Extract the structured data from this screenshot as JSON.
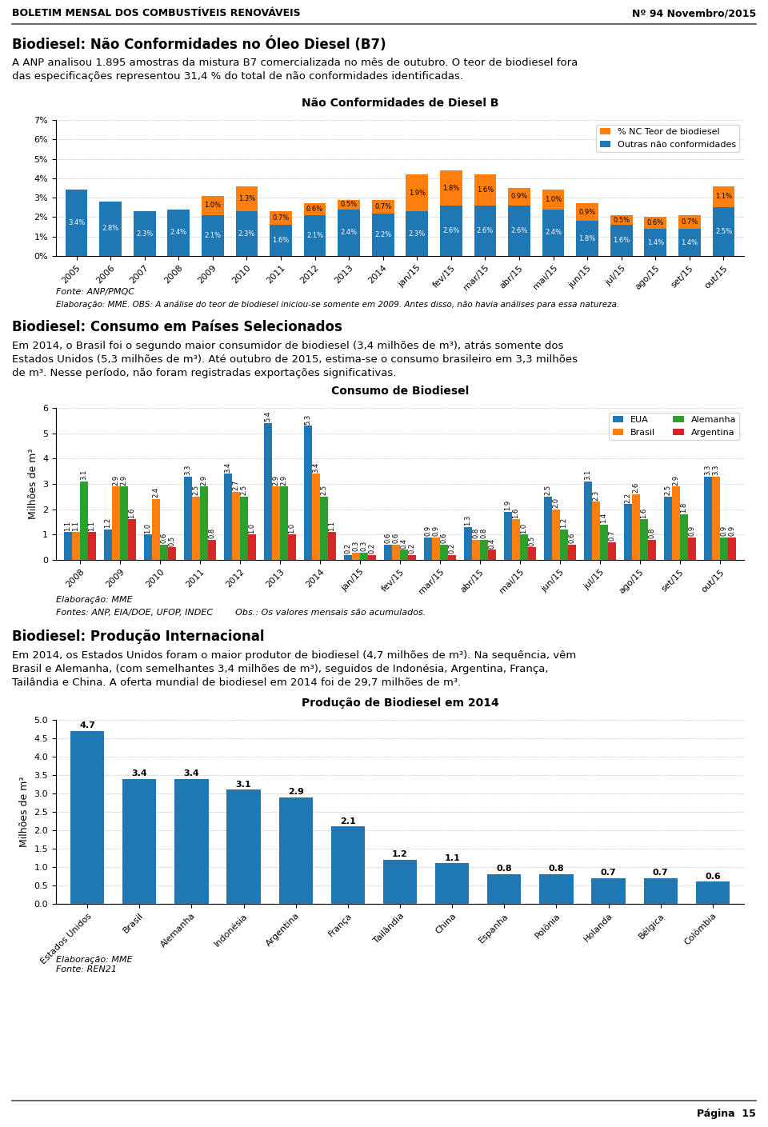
{
  "chart_data": [
    {
      "type": "bar",
      "stacked": true,
      "title": "Não Conformidades de Diesel B",
      "categories": [
        "2005",
        "2006",
        "2007",
        "2008",
        "2009",
        "2010",
        "2011",
        "2012",
        "2013",
        "2014",
        "jan/15",
        "fev/15",
        "mar/15",
        "abr/15",
        "mai/15",
        "jun/15",
        "jul/15",
        "ago/15",
        "set/15",
        "out/15"
      ],
      "series": [
        {
          "name": "Outras não conformidades",
          "values": [
            3.4,
            2.8,
            2.3,
            2.4,
            2.1,
            2.3,
            1.6,
            2.1,
            2.4,
            2.2,
            2.3,
            2.6,
            2.6,
            2.6,
            2.4,
            1.8,
            1.6,
            1.4,
            1.4,
            2.5
          ],
          "value_labels": [
            "3.4%",
            "2.8%",
            "2.3%",
            "2.4%",
            "2.1%",
            "2.3%",
            "1.6%",
            "2.1%",
            "2.4%",
            "2.2%",
            "2.3%",
            "2.6%",
            "2.6%",
            "2.6%",
            "2.4%",
            "1.8%",
            "1.6%",
            "1.4%",
            "1.4%",
            "2.5%"
          ]
        },
        {
          "name": "% NC Teor de biodiesel",
          "values": [
            0.0,
            0.0,
            0.0,
            0.0,
            1.0,
            1.3,
            0.7,
            0.6,
            0.5,
            0.7,
            1.9,
            1.8,
            1.6,
            0.9,
            1.0,
            0.9,
            0.5,
            0.6,
            0.7,
            1.1
          ],
          "value_labels": [
            null,
            null,
            null,
            null,
            "1.0%",
            "1.3%",
            "0.7%",
            "0.6%",
            "0.5%",
            "0.7%",
            "1.9%",
            "1.8%",
            "1.6%",
            "0.9%",
            "1.0%",
            "0.9%",
            "0.5%",
            "0.6%",
            "0.7%",
            "1.1%"
          ]
        }
      ],
      "ylim": [
        0,
        7
      ],
      "yticks": [
        {
          "value": 0,
          "label": "0%"
        },
        {
          "value": 1,
          "label": "1%"
        },
        {
          "value": 2,
          "label": "2%"
        },
        {
          "value": 3,
          "label": "3%"
        },
        {
          "value": 4,
          "label": "4%"
        },
        {
          "value": 5,
          "label": "5%"
        },
        {
          "value": 6,
          "label": "6%"
        },
        {
          "value": 7,
          "label": "7%"
        }
      ],
      "grid": true,
      "legend": "upper right",
      "data_labels": true,
      "annotations": [
        "BOLETIM MENSAL DOS COMBUSTÍVEIS RENOVÁVEIS",
        "Nº 94 Novembro/2015",
        "Biodiesel: Não Conformidades no Óleo Diesel (B7)",
        "A ANP analisou 1.895 amostras da mistura B7 comercializada no mês de outubro. O teor de biodiesel fora",
        "das especificações representou 31,4 % do total de não conformidades identificadas.",
        "Fonte: ANP/PMQC",
        "Elaboração: MME. OBS: A análise do teor de biodiesel iniciou-se somente em 2009. Antes disso, não havia análises para essa natureza."
      ]
    },
    {
      "type": "bar",
      "title": "Consumo de Biodiesel",
      "categories": [
        "2008",
        "2009",
        "2010",
        "2011",
        "2012",
        "2013",
        "2014",
        "jan/15",
        "fev/15",
        "mar/15",
        "abr/15",
        "mai/15",
        "jun/15",
        "jul/15",
        "ago/15",
        "set/15",
        "out/15"
      ],
      "series": [
        {
          "name": "EUA",
          "values": [
            1.1,
            1.2,
            1.0,
            3.3,
            3.4,
            5.4,
            5.3,
            0.2,
            0.6,
            0.9,
            1.3,
            1.9,
            2.5,
            3.1,
            2.2,
            2.5,
            3.3
          ]
        },
        {
          "name": "Brasil",
          "values": [
            1.1,
            2.9,
            2.4,
            2.5,
            2.7,
            2.9,
            3.4,
            0.3,
            0.6,
            0.9,
            0.8,
            1.6,
            2.0,
            2.3,
            2.6,
            2.9,
            3.3
          ]
        },
        {
          "name": "Alemanha",
          "values": [
            3.1,
            2.9,
            0.6,
            2.9,
            2.5,
            2.9,
            2.5,
            0.3,
            0.4,
            0.6,
            0.8,
            1.0,
            1.2,
            1.4,
            1.6,
            1.8,
            0.9
          ]
        },
        {
          "name": "Argentina",
          "values": [
            1.1,
            1.6,
            0.5,
            0.8,
            1.0,
            1.0,
            1.1,
            0.2,
            0.2,
            0.2,
            0.4,
            0.5,
            0.6,
            0.7,
            0.8,
            0.9,
            0.9
          ]
        }
      ],
      "y_label": "Milhões de m³",
      "ylim": [
        0,
        6
      ],
      "yticks": [
        0,
        1,
        2,
        3,
        4,
        5,
        6
      ],
      "grid": true,
      "legend": "upper right",
      "data_labels": true,
      "annotations": [
        "Biodiesel: Consumo em Países Selecionados",
        "Em 2014, o Brasil foi o segundo maior consumidor de biodiesel (3,4 milhões de m³), atrás somente dos",
        "Estados Unidos (5,3 milhões de m³). Até outubro de 2015, estima-se o consumo brasileiro em 3,3 milhões",
        "de m³. Nesse período, não foram registradas exportações significativas.",
        "Elaboração: MME",
        "Fontes: ANP, EIA/DOE, UFOP, INDEC        Obs.: Os valores mensais são acumulados."
      ]
    },
    {
      "type": "bar",
      "title": "Produção de Biodiesel em 2014",
      "categories": [
        "Estados Unidos",
        "Brasil",
        "Alemanha",
        "Indonésia",
        "Argentina",
        "França",
        "Tailândia",
        "China",
        "Espanha",
        "Polônia",
        "Holanda",
        "Bélgica",
        "Colômbia"
      ],
      "values": [
        4.7,
        3.4,
        3.4,
        3.1,
        2.9,
        2.1,
        1.2,
        1.1,
        0.8,
        0.8,
        0.7,
        0.7,
        0.6
      ],
      "y_label": "Milhões de m³",
      "ylim": [
        0,
        5
      ],
      "yticks": [
        {
          "value": 0,
          "label": "0.0"
        },
        {
          "value": 0.5,
          "label": "0.5"
        },
        {
          "value": 1,
          "label": "1.0"
        },
        {
          "value": 1.5,
          "label": "1.5"
        },
        {
          "value": 2,
          "label": "2.0"
        },
        {
          "value": 2.5,
          "label": "2.5"
        },
        {
          "value": 3,
          "label": "3.0"
        },
        {
          "value": 3.5,
          "label": "3.5"
        },
        {
          "value": 4,
          "label": "4.0"
        },
        {
          "value": 4.5,
          "label": "4.5"
        },
        {
          "value": 5,
          "label": "5.0"
        }
      ],
      "grid": true,
      "data_labels": true,
      "annotations": [
        "Biodiesel: Produção Internacional",
        "Em 2014, os Estados Unidos foram o maior produtor de biodiesel (4,7 milhões de m³). Na sequência, vêm",
        "Brasil e Alemanha, (com semelhantes 3,4 milhões de m³), seguidos de Indonésia, Argentina, França,",
        "Tailândia e China. A oferta mundial de biodiesel em 2014 foi de 29,7 milhões de m³.",
        "Elaboração: MME\nFonte: REN21",
        "Página  15"
      ]
    }
  ]
}
